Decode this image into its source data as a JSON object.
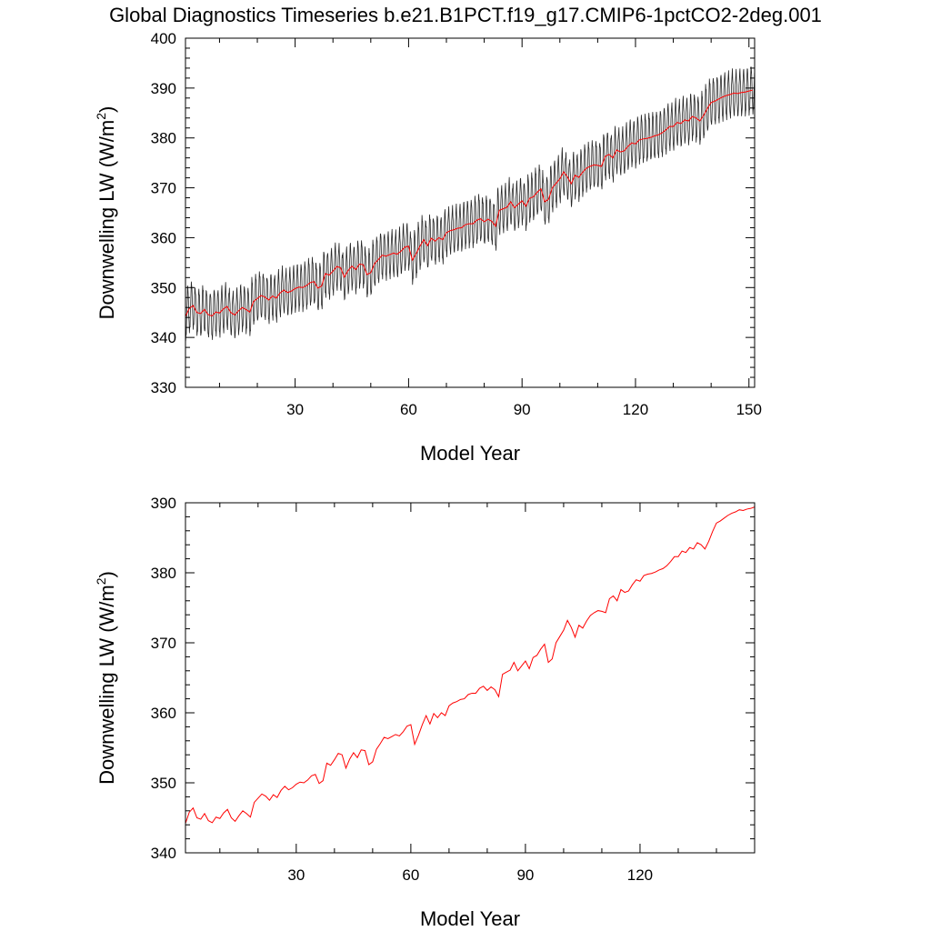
{
  "title": "Global Diagnostics Timeseries b.e21.B1PCT.f19_g17.CMIP6-1pctCO2-2deg.001",
  "colors": {
    "monthly": "#000000",
    "annual": "#ff0000",
    "axis": "#000000"
  },
  "chart_data": [
    {
      "type": "line",
      "xlabel": "Model Year",
      "ylabel_main": "Downwelling LW (W/m",
      "ylabel_sup": "2",
      "ylabel_close": ")",
      "xlim": [
        1,
        151.5
      ],
      "ylim": [
        330,
        400
      ],
      "xticks": [
        30,
        60,
        90,
        120,
        150
      ],
      "yticks": [
        330,
        340,
        350,
        360,
        370,
        380,
        390,
        400
      ],
      "grid": false,
      "series": [
        {
          "kind": "monthly",
          "color": "#000000",
          "seasonal_amplitude": 4.5,
          "description_values_from": "annual"
        },
        {
          "kind": "annual",
          "color": "#ff0000"
        }
      ],
      "x": [
        1,
        2,
        3,
        4,
        5,
        6,
        7,
        8,
        9,
        10,
        11,
        12,
        13,
        14,
        15,
        16,
        17,
        18,
        19,
        20,
        21,
        22,
        23,
        24,
        25,
        26,
        27,
        28,
        29,
        30,
        31,
        32,
        33,
        34,
        35,
        36,
        37,
        38,
        39,
        40,
        41,
        42,
        43,
        44,
        45,
        46,
        47,
        48,
        49,
        50,
        51,
        52,
        53,
        54,
        55,
        56,
        57,
        58,
        59,
        60,
        61,
        62,
        63,
        64,
        65,
        66,
        67,
        68,
        69,
        70,
        71,
        72,
        73,
        74,
        75,
        76,
        77,
        78,
        79,
        80,
        81,
        82,
        83,
        84,
        85,
        86,
        87,
        88,
        89,
        90,
        91,
        92,
        93,
        94,
        95,
        96,
        97,
        98,
        99,
        100,
        101,
        102,
        103,
        104,
        105,
        106,
        107,
        108,
        109,
        110,
        111,
        112,
        113,
        114,
        115,
        116,
        117,
        118,
        119,
        120,
        121,
        122,
        123,
        124,
        125,
        126,
        127,
        128,
        129,
        130,
        131,
        132,
        133,
        134,
        135,
        136,
        137,
        138,
        139,
        140,
        141,
        142,
        143,
        144,
        145,
        146,
        147,
        148,
        149,
        150,
        151
      ],
      "values": [
        344.2,
        345.8,
        346.4,
        345.0,
        344.8,
        345.6,
        344.6,
        344.3,
        345.1,
        344.9,
        345.7,
        346.2,
        345.0,
        344.5,
        345.3,
        346.0,
        345.6,
        345.1,
        347.2,
        347.8,
        348.4,
        348.1,
        347.5,
        348.3,
        347.9,
        348.9,
        349.5,
        349.0,
        349.3,
        349.8,
        350.1,
        350.0,
        350.4,
        351.0,
        351.2,
        349.9,
        350.3,
        352.8,
        352.5,
        353.3,
        354.2,
        354.0,
        352.1,
        353.4,
        354.3,
        353.6,
        354.7,
        354.6,
        352.6,
        353.0,
        354.8,
        355.6,
        356.5,
        356.3,
        356.6,
        356.9,
        356.7,
        357.3,
        358.1,
        358.3,
        355.5,
        356.8,
        358.3,
        359.6,
        358.4,
        359.9,
        359.3,
        360.0,
        359.6,
        361.0,
        361.4,
        361.6,
        361.9,
        362.0,
        362.6,
        362.8,
        362.8,
        363.5,
        363.8,
        363.2,
        363.7,
        363.3,
        362.3,
        365.5,
        365.8,
        366.1,
        367.2,
        366.0,
        366.7,
        367.4,
        366.3,
        367.9,
        368.2,
        369.1,
        369.8,
        367.2,
        367.7,
        370.0,
        370.9,
        371.8,
        373.2,
        372.2,
        370.8,
        372.5,
        372.1,
        373.1,
        373.9,
        374.3,
        374.6,
        374.5,
        374.3,
        376.3,
        376.7,
        376.0,
        377.6,
        377.2,
        377.4,
        378.3,
        379.0,
        378.8,
        379.6,
        379.8,
        379.9,
        380.1,
        380.4,
        380.6,
        381.0,
        381.6,
        382.3,
        382.3,
        383.1,
        382.9,
        383.6,
        383.4,
        384.3,
        384.0,
        383.4,
        384.5,
        385.9,
        387.1,
        387.4,
        387.8,
        388.2,
        388.5,
        388.7,
        389.0,
        388.9,
        389.1,
        389.2,
        389.4,
        389.6
      ]
    },
    {
      "type": "line",
      "xlabel": "Model Year",
      "ylabel_main": "Downwelling LW (W/m",
      "ylabel_sup": "2",
      "ylabel_close": ")",
      "xlim": [
        1,
        150
      ],
      "ylim": [
        340,
        390
      ],
      "xticks": [
        30,
        60,
        90,
        120
      ],
      "yticks": [
        340,
        350,
        360,
        370,
        380,
        390
      ],
      "grid": false,
      "series": [
        {
          "kind": "annual",
          "color": "#ff0000"
        }
      ]
    }
  ]
}
